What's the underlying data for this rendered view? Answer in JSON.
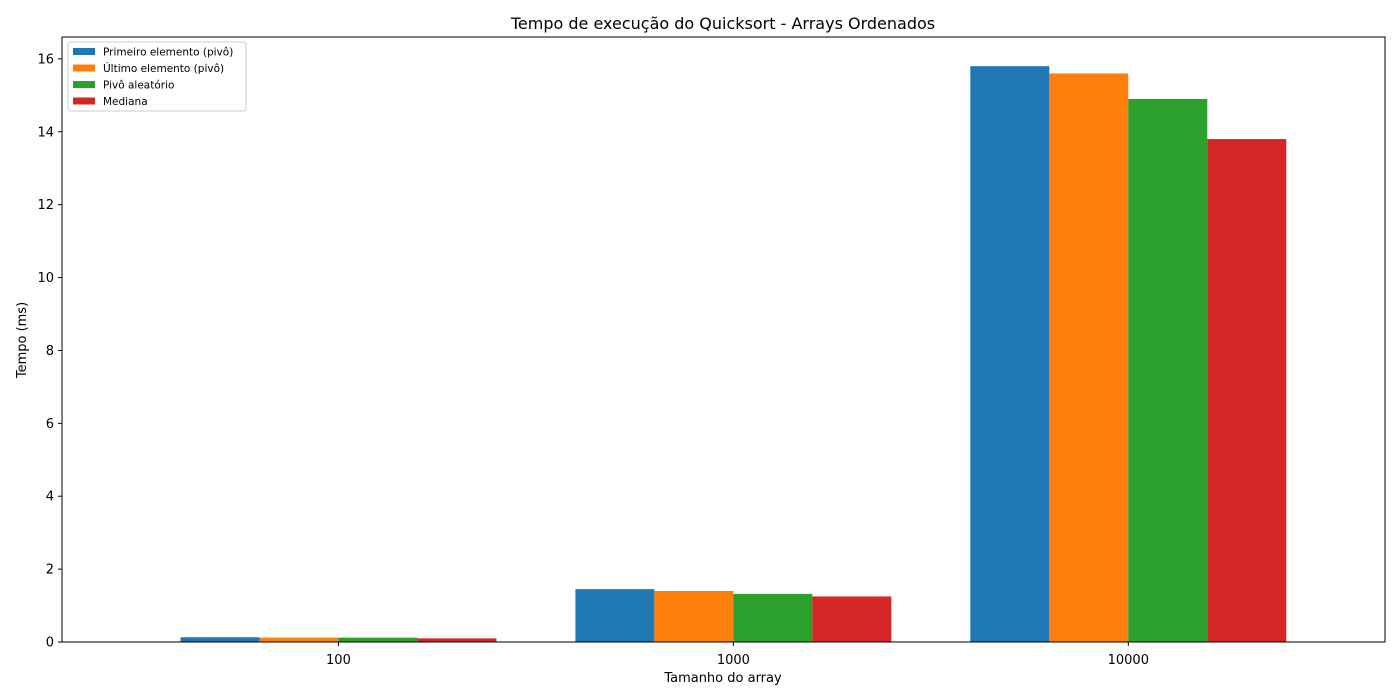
{
  "chart_data": {
    "type": "bar",
    "title": "Tempo de execução do Quicksort - Arrays Ordenados",
    "xlabel": "Tamanho do array",
    "ylabel": "Tempo (ms)",
    "categories": [
      "100",
      "1000",
      "10000"
    ],
    "ylim": [
      0,
      16.6
    ],
    "yticks": [
      0,
      2,
      4,
      6,
      8,
      10,
      12,
      14,
      16
    ],
    "grid": false,
    "legend_position": "top-left",
    "series": [
      {
        "name": "Primeiro elemento (pivô)",
        "color": "#1f77b4",
        "values": [
          0.13,
          1.45,
          15.8
        ]
      },
      {
        "name": "Último elemento (pivô)",
        "color": "#ff7f0e",
        "values": [
          0.12,
          1.4,
          15.6
        ]
      },
      {
        "name": "Pivô aleatório",
        "color": "#2ca02c",
        "values": [
          0.12,
          1.32,
          14.9
        ]
      },
      {
        "name": "Mediana",
        "color": "#d62728",
        "values": [
          0.1,
          1.25,
          13.8
        ]
      }
    ]
  }
}
